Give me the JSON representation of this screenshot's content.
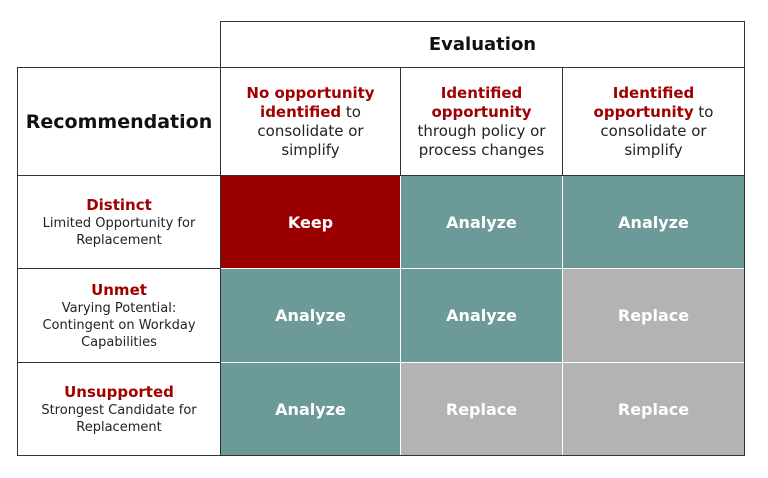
{
  "evaluation_header": "Evaluation",
  "recommendation_header": "Recommendation",
  "columns": [
    {
      "red": "No opportunity identified",
      "rest": " to consolidate or simplify"
    },
    {
      "red": "Identified opportunity",
      "rest": " through policy or process changes"
    },
    {
      "red": "Identified opportunity",
      "rest": " to consolidate or simplify"
    }
  ],
  "rows": [
    {
      "title": "Distinct",
      "subtitle": "Limited Opportunity for Replacement",
      "cells": [
        {
          "label": "Keep",
          "color": "#9b0000"
        },
        {
          "label": "Analyze",
          "color": "#6b9a99"
        },
        {
          "label": "Analyze",
          "color": "#6b9a99"
        }
      ]
    },
    {
      "title": "Unmet",
      "subtitle": "Varying Potential: Contingent on Workday Capabilities",
      "cells": [
        {
          "label": "Analyze",
          "color": "#6b9a99"
        },
        {
          "label": "Analyze",
          "color": "#6b9a99"
        },
        {
          "label": "Replace",
          "color": "#b3b3b3"
        }
      ]
    },
    {
      "title": "Unsupported",
      "subtitle": "Strongest Candidate for Replacement",
      "cells": [
        {
          "label": "Analyze",
          "color": "#6b9a99"
        },
        {
          "label": "Replace",
          "color": "#b3b3b3"
        },
        {
          "label": "Replace",
          "color": "#b3b3b3"
        }
      ]
    }
  ]
}
